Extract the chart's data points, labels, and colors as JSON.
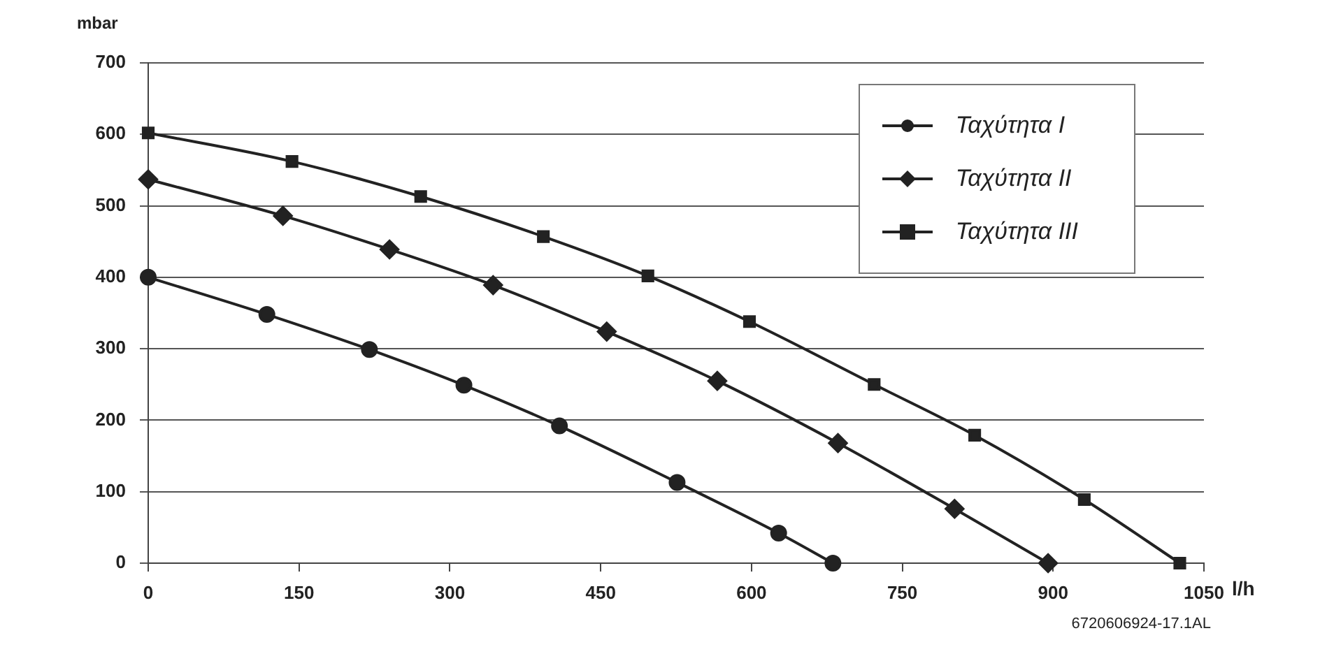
{
  "chart_data": {
    "type": "line",
    "ylabel": "mbar",
    "xlabel": "l/h",
    "annotations": [
      "6720606924-17.1AL"
    ],
    "xlim": [
      0,
      1050
    ],
    "xticks": [
      0,
      150,
      300,
      450,
      600,
      750,
      900,
      1050
    ],
    "ylim": [
      0,
      700
    ],
    "yticks": [
      0,
      100,
      200,
      300,
      400,
      500,
      600,
      700
    ],
    "grid": "y",
    "legend": "top right",
    "line_style": "solid",
    "series": [
      {
        "name": "Ταχύτητα I",
        "color": "#222222",
        "marker": "circle",
        "x": [
          0,
          118,
          220,
          314,
          409,
          526,
          627,
          681
        ],
        "values": [
          400,
          348,
          299,
          249,
          192,
          113,
          42,
          0
        ]
      },
      {
        "name": "Ταχύτητα II",
        "color": "#222222",
        "marker": "diamond",
        "x": [
          0,
          134,
          240,
          343,
          456,
          566,
          686,
          802,
          895
        ],
        "values": [
          537,
          486,
          439,
          389,
          324,
          255,
          168,
          76,
          0
        ]
      },
      {
        "name": "Ταχύτητα III",
        "color": "#222222",
        "marker": "square",
        "x": [
          0,
          143,
          271,
          393,
          497,
          598,
          722,
          822,
          931,
          1026
        ],
        "values": [
          602,
          562,
          513,
          457,
          402,
          338,
          250,
          179,
          89,
          0
        ]
      }
    ]
  }
}
